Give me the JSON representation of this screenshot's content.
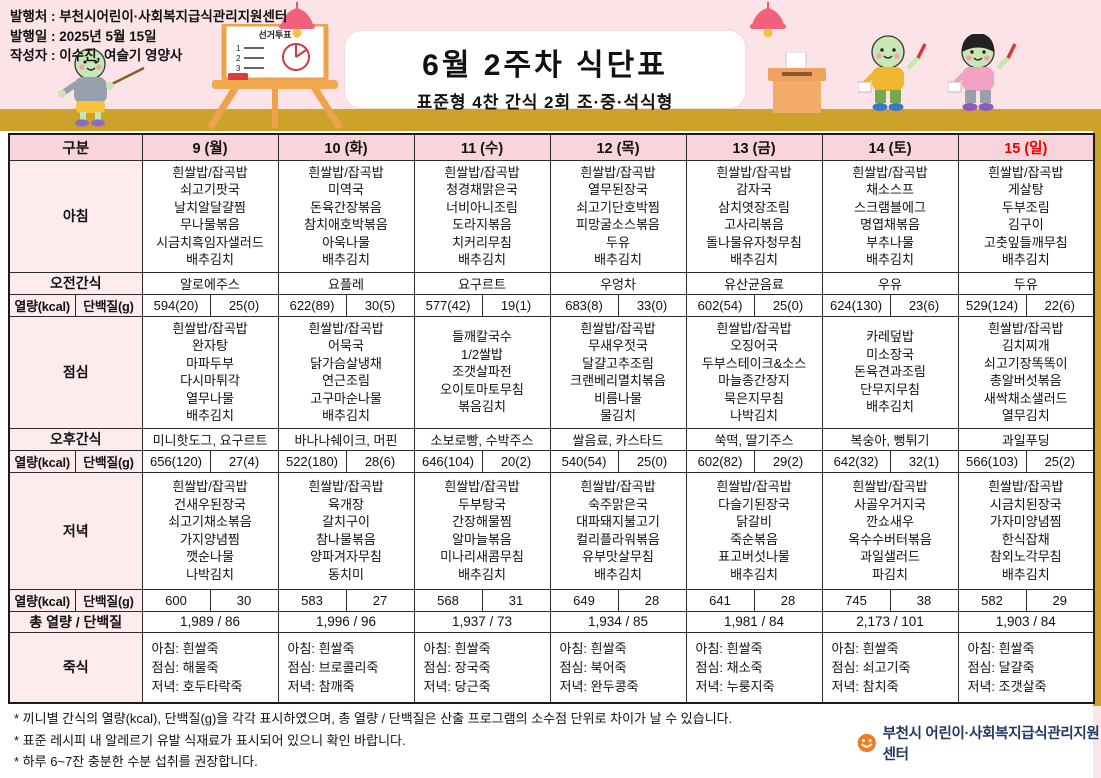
{
  "header": {
    "publisher": "발행처 : 부천시어린이·사회복지급식관리지원센터",
    "publish_date": "발행일 : 2025년 5월 15일",
    "author": "작성자 : 이수진, 여슬기 영양사",
    "title": "6월 2주차 식단표",
    "subtitle": "표준형 4찬 간식 2회 조·중·석식형",
    "board_text": "선거투표"
  },
  "table": {
    "col_header_label": "구분",
    "days": [
      "9 (월)",
      "10 (화)",
      "11 (수)",
      "12 (목)",
      "13 (금)",
      "14 (토)",
      "15 (일)"
    ],
    "row_labels": {
      "breakfast": "아침",
      "am_snack": "오전간식",
      "kcal": "열량(kcal)",
      "protein": "단백질(g)",
      "lunch": "점심",
      "pm_snack": "오후간식",
      "dinner": "저녁",
      "total": "총 열량 / 단백질",
      "porridge": "죽식"
    },
    "breakfast": [
      [
        "흰쌀밥/잡곡밥",
        "쇠고기팟국",
        "날치알달걀찜",
        "무나물볶음",
        "시금치흑임자샐러드",
        "배추김치"
      ],
      [
        "흰쌀밥/잡곡밥",
        "미역국",
        "돈육간장볶음",
        "참치애호박볶음",
        "아욱나물",
        "배추김치"
      ],
      [
        "흰쌀밥/잡곡밥",
        "청경채맑은국",
        "너비아니조림",
        "도라지볶음",
        "치커리무침",
        "배추김치"
      ],
      [
        "흰쌀밥/잡곡밥",
        "열무된장국",
        "쇠고기단호박찜",
        "피망굴소스볶음",
        "두유",
        "배추김치"
      ],
      [
        "흰쌀밥/잡곡밥",
        "감자국",
        "삼치엿장조림",
        "고사리볶음",
        "돌나물유자청무침",
        "배추김치"
      ],
      [
        "흰쌀밥/잡곡밥",
        "채소스프",
        "스크램블에그",
        "명엽채볶음",
        "부추나물",
        "배추김치"
      ],
      [
        "흰쌀밥/잡곡밥",
        "게살탕",
        "두부조림",
        "김구이",
        "고춧잎들깨무침",
        "배추김치"
      ]
    ],
    "am_snack": [
      "알로에주스",
      "요플레",
      "요구르트",
      "우엉차",
      "유산균음료",
      "우유",
      "두유"
    ],
    "kcal1": [
      [
        "594(20)",
        "25(0)"
      ],
      [
        "622(89)",
        "30(5)"
      ],
      [
        "577(42)",
        "19(1)"
      ],
      [
        "683(8)",
        "33(0)"
      ],
      [
        "602(54)",
        "25(0)"
      ],
      [
        "624(130)",
        "23(6)"
      ],
      [
        "529(124)",
        "22(6)"
      ]
    ],
    "lunch": [
      [
        "흰쌀밥/잡곡밥",
        "완자탕",
        "마파두부",
        "다시마튀각",
        "열무나물",
        "배추김치"
      ],
      [
        "흰쌀밥/잡곡밥",
        "어묵국",
        "닭가슴살냉채",
        "연근조림",
        "고구마순나물",
        "배추김치"
      ],
      [
        "들깨칼국수",
        "1/2쌀밥",
        "조갯살파전",
        "오이토마토무침",
        "볶음김치"
      ],
      [
        "흰쌀밥/잡곡밥",
        "무새우젓국",
        "달걀고추조림",
        "크랜베리멸치볶음",
        "비름나물",
        "물김치"
      ],
      [
        "흰쌀밥/잡곡밥",
        "오징어국",
        "두부스테이크&소스",
        "마늘종간장지",
        "묵은지무침",
        "나박김치"
      ],
      [
        "카레덮밥",
        "미소장국",
        "돈육견과조림",
        "단무지무침",
        "배추김치"
      ],
      [
        "흰쌀밥/잡곡밥",
        "김치찌개",
        "쇠고기장똑똑이",
        "총알버섯볶음",
        "새싹채소샐러드",
        "열무김치"
      ]
    ],
    "pm_snack": [
      "미니핫도그, 요구르트",
      "바나나쉐이크, 머핀",
      "소보로빵, 수박주스",
      "쌀음료, 카스타드",
      "쑥떡, 딸기주스",
      "복숭아, 뻥튀기",
      "과일푸딩"
    ],
    "kcal2": [
      [
        "656(120)",
        "27(4)"
      ],
      [
        "522(180)",
        "28(6)"
      ],
      [
        "646(104)",
        "20(2)"
      ],
      [
        "540(54)",
        "25(0)"
      ],
      [
        "602(82)",
        "29(2)"
      ],
      [
        "642(32)",
        "32(1)"
      ],
      [
        "566(103)",
        "25(2)"
      ]
    ],
    "dinner": [
      [
        "흰쌀밥/잡곡밥",
        "건새우된장국",
        "쇠고기채소볶음",
        "가지양념찜",
        "깻순나물",
        "나박김치"
      ],
      [
        "흰쌀밥/잡곡밥",
        "육개장",
        "갈치구이",
        "참나물볶음",
        "양파겨자무침",
        "동치미"
      ],
      [
        "흰쌀밥/잡곡밥",
        "두부탕국",
        "간장해물찜",
        "알마늘볶음",
        "미나리새콤무침",
        "배추김치"
      ],
      [
        "흰쌀밥/잡곡밥",
        "숙주맑은국",
        "대파돼지불고기",
        "컬리플라워볶음",
        "유부맛살무침",
        "배추김치"
      ],
      [
        "흰쌀밥/잡곡밥",
        "다슬기된장국",
        "닭갈비",
        "죽순볶음",
        "표고버섯나물",
        "배추김치"
      ],
      [
        "흰쌀밥/잡곡밥",
        "사골우거지국",
        "깐쇼새우",
        "옥수수버터볶음",
        "과일샐러드",
        "파김치"
      ],
      [
        "흰쌀밥/잡곡밥",
        "시금치된장국",
        "가자미양념찜",
        "한식잡채",
        "참외노각무침",
        "배추김치"
      ]
    ],
    "kcal3": [
      [
        "600",
        "30"
      ],
      [
        "583",
        "27"
      ],
      [
        "568",
        "31"
      ],
      [
        "649",
        "28"
      ],
      [
        "641",
        "28"
      ],
      [
        "745",
        "38"
      ],
      [
        "582",
        "29"
      ]
    ],
    "totals": [
      "1,989 / 86",
      "1,996 / 96",
      "1,937 / 73",
      "1,934 / 85",
      "1,981 / 84",
      "2,173 / 101",
      "1,903 / 84"
    ],
    "porridge": [
      [
        "아침: 흰쌀죽",
        "점심: 해물죽",
        "저녁: 호두타락죽"
      ],
      [
        "아침: 흰쌀죽",
        "점심: 브로콜리죽",
        "저녁: 참깨죽"
      ],
      [
        "아침: 흰쌀죽",
        "점심: 장국죽",
        "저녁: 당근죽"
      ],
      [
        "아침: 흰쌀죽",
        "점심: 북어죽",
        "저녁: 완두콩죽"
      ],
      [
        "아침: 흰쌀죽",
        "점심: 채소죽",
        "저녁: 누룽지죽"
      ],
      [
        "아침: 흰쌀죽",
        "점심: 쇠고기죽",
        "저녁: 참치죽"
      ],
      [
        "아침: 흰쌀죽",
        "점심: 달걀죽",
        "저녁: 조갯살죽"
      ]
    ]
  },
  "footnotes": [
    "* 끼니별 간식의 열량(kcal), 단백질(g)을 각각 표시하였으며, 총 열량 / 단백질은 산출 프로그램의 소수점 단위로 차이가 날 수 있습니다.",
    "* 표준 레시피 내 알레르기 유발 식재료가 표시되어 있으니 확인 바랍니다.",
    "* 하루 6~7잔 충분한 수분 섭취를 권장합니다."
  ],
  "footer": {
    "org": "부천시 어린이·사회복지급식관리지원센터"
  },
  "colors": {
    "band_pink": "#fce3e7",
    "band_gold": "#cda22a",
    "header_cell_pink": "#f9d4da",
    "label_cell_pink": "#fdebee",
    "sunday_red": "#e80000",
    "logo_orange": "#f47b20",
    "logo_text_navy": "#1f3864"
  }
}
